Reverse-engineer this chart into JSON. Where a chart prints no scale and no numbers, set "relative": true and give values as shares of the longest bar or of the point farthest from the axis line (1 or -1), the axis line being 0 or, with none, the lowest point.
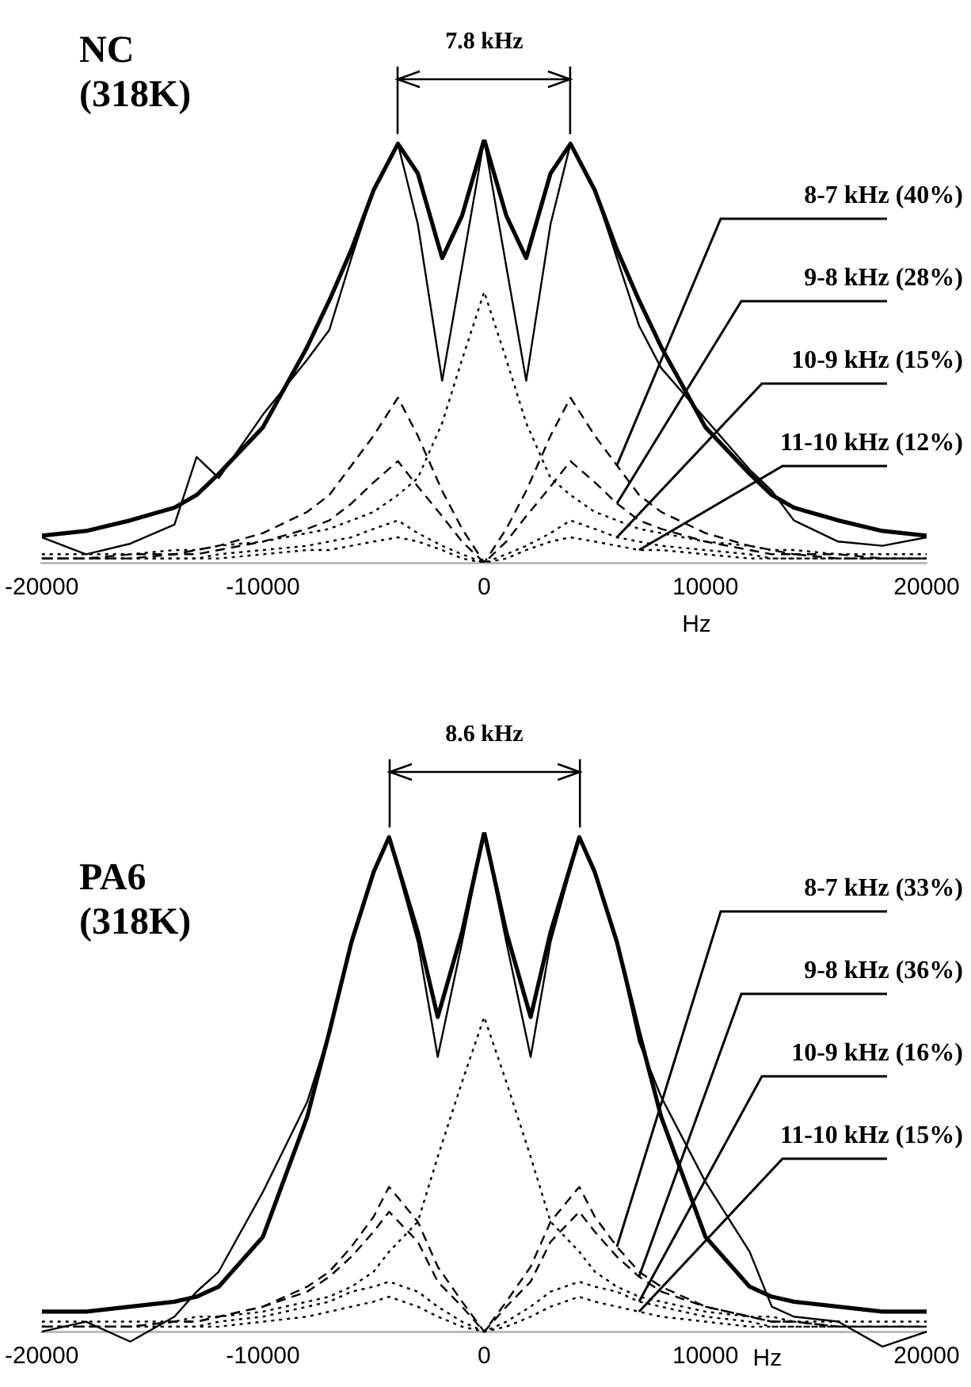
{
  "chart_data": [
    {
      "type": "line",
      "title": "NC (318K)",
      "xlabel": "Hz",
      "relative": true,
      "annotations": [
        "7.8 kHz"
      ],
      "xlim": [
        -20000,
        20000
      ],
      "xticks": [
        -20000,
        -10000,
        0,
        10000,
        20000
      ],
      "grid": false,
      "legend": false,
      "marker": "none",
      "x": [
        -20000,
        -18000,
        -16000,
        -14000,
        -13000,
        -12000,
        -10000,
        -8000,
        -7000,
        -6000,
        -5000,
        -3900,
        -3000,
        -1900,
        -1000,
        0,
        1000,
        1900,
        3000,
        3900,
        5000,
        6000,
        7000,
        8000,
        10000,
        12000,
        13000,
        14000,
        16000,
        18000,
        20000
      ],
      "series": [
        {
          "color": "#000000",
          "line_style": "solid",
          "values": [
            0.064,
            0.075,
            0.1,
            0.13,
            0.16,
            0.21,
            0.32,
            0.51,
            0.62,
            0.74,
            0.88,
            0.99,
            0.92,
            0.72,
            0.82,
            1.0,
            0.82,
            0.72,
            0.92,
            0.99,
            0.88,
            0.74,
            0.62,
            0.51,
            0.32,
            0.21,
            0.16,
            0.13,
            0.1,
            0.075,
            0.064
          ]
        },
        {
          "color": "#000000",
          "line_style": "solid",
          "values": [
            0.06,
            0.02,
            0.045,
            0.09,
            0.25,
            0.2,
            0.35,
            0.48,
            0.55,
            0.72,
            0.88,
            0.99,
            0.8,
            0.43,
            0.7,
            1.0,
            0.7,
            0.43,
            0.8,
            0.99,
            0.88,
            0.72,
            0.56,
            0.46,
            0.34,
            0.22,
            0.17,
            0.1,
            0.05,
            0.04,
            0.06
          ]
        },
        {
          "color": "#000000",
          "line_style": "dotted",
          "values": [
            0.02,
            0.02,
            0.02,
            0.03,
            0.03,
            0.04,
            0.05,
            0.07,
            0.08,
            0.1,
            0.12,
            0.16,
            0.2,
            0.33,
            0.48,
            0.64,
            0.48,
            0.33,
            0.2,
            0.16,
            0.12,
            0.1,
            0.08,
            0.07,
            0.05,
            0.04,
            0.03,
            0.03,
            0.02,
            0.02,
            0.02
          ]
        },
        {
          "name": "8-7 kHz (40%)",
          "color": "#000000",
          "line_style": "dashed",
          "values": [
            0.01,
            0.01,
            0.02,
            0.02,
            0.03,
            0.04,
            0.07,
            0.12,
            0.16,
            0.23,
            0.3,
            0.39,
            0.3,
            0.17,
            0.08,
            0.0,
            0.08,
            0.17,
            0.3,
            0.39,
            0.3,
            0.23,
            0.16,
            0.12,
            0.07,
            0.04,
            0.03,
            0.02,
            0.02,
            0.01,
            0.01
          ]
        },
        {
          "name": "9-8 kHz (28%)",
          "color": "#000000",
          "line_style": "dashed",
          "values": [
            0.01,
            0.01,
            0.01,
            0.02,
            0.02,
            0.03,
            0.05,
            0.08,
            0.1,
            0.14,
            0.19,
            0.24,
            0.18,
            0.11,
            0.05,
            0.0,
            0.05,
            0.11,
            0.18,
            0.24,
            0.19,
            0.14,
            0.1,
            0.08,
            0.05,
            0.03,
            0.02,
            0.02,
            0.01,
            0.01,
            0.01
          ]
        },
        {
          "name": "10-9 kHz (15%)",
          "color": "#000000",
          "line_style": "dotted",
          "values": [
            0.01,
            0.01,
            0.01,
            0.01,
            0.01,
            0.02,
            0.03,
            0.04,
            0.05,
            0.06,
            0.08,
            0.1,
            0.07,
            0.04,
            0.02,
            0.0,
            0.02,
            0.04,
            0.07,
            0.1,
            0.08,
            0.06,
            0.05,
            0.04,
            0.03,
            0.02,
            0.01,
            0.01,
            0.01,
            0.01,
            0.01
          ]
        },
        {
          "name": "11-10 kHz (12%)",
          "color": "#000000",
          "line_style": "dotted",
          "values": [
            0.01,
            0.01,
            0.01,
            0.01,
            0.01,
            0.01,
            0.02,
            0.03,
            0.03,
            0.04,
            0.05,
            0.06,
            0.05,
            0.03,
            0.01,
            0.0,
            0.01,
            0.03,
            0.05,
            0.06,
            0.05,
            0.04,
            0.03,
            0.03,
            0.02,
            0.01,
            0.01,
            0.01,
            0.01,
            0.01,
            0.01
          ]
        }
      ]
    },
    {
      "type": "line",
      "title": "PA6 (318K)",
      "xlabel": "Hz",
      "relative": true,
      "annotations": [
        "8.6 kHz"
      ],
      "xlim": [
        -20000,
        20000
      ],
      "xticks": [
        -20000,
        -10000,
        0,
        10000,
        20000
      ],
      "grid": false,
      "legend": false,
      "marker": "none",
      "x": [
        -20000,
        -18000,
        -16000,
        -14000,
        -13000,
        -12000,
        -10000,
        -8000,
        -7000,
        -6000,
        -5000,
        -4300,
        -3000,
        -2100,
        -1000,
        0,
        1000,
        2100,
        3000,
        4300,
        5000,
        6000,
        7000,
        8000,
        10000,
        12000,
        13000,
        14000,
        16000,
        18000,
        20000
      ],
      "series": [
        {
          "color": "#000000",
          "line_style": "solid",
          "values": [
            0.04,
            0.04,
            0.05,
            0.06,
            0.07,
            0.09,
            0.19,
            0.43,
            0.6,
            0.78,
            0.92,
            0.99,
            0.8,
            0.63,
            0.8,
            1.0,
            0.8,
            0.63,
            0.8,
            0.99,
            0.92,
            0.78,
            0.6,
            0.43,
            0.19,
            0.09,
            0.07,
            0.06,
            0.05,
            0.04,
            0.04
          ]
        },
        {
          "color": "#000000",
          "line_style": "solid",
          "values": [
            0.0,
            0.02,
            -0.02,
            0.03,
            0.08,
            0.12,
            0.28,
            0.46,
            0.6,
            0.78,
            0.92,
            0.99,
            0.78,
            0.55,
            0.78,
            1.0,
            0.78,
            0.55,
            0.78,
            0.99,
            0.92,
            0.78,
            0.58,
            0.47,
            0.3,
            0.16,
            0.05,
            0.03,
            0.02,
            -0.03,
            0.0
          ]
        },
        {
          "color": "#000000",
          "line_style": "dotted",
          "values": [
            0.02,
            0.02,
            0.02,
            0.02,
            0.03,
            0.03,
            0.04,
            0.06,
            0.07,
            0.09,
            0.12,
            0.16,
            0.22,
            0.35,
            0.5,
            0.63,
            0.5,
            0.35,
            0.22,
            0.16,
            0.12,
            0.09,
            0.07,
            0.06,
            0.04,
            0.03,
            0.03,
            0.02,
            0.02,
            0.02,
            0.02
          ]
        },
        {
          "name": "8-7 kHz (33%)",
          "color": "#000000",
          "line_style": "dashed",
          "values": [
            0.01,
            0.01,
            0.01,
            0.02,
            0.02,
            0.03,
            0.05,
            0.09,
            0.12,
            0.17,
            0.23,
            0.29,
            0.22,
            0.13,
            0.06,
            0.0,
            0.06,
            0.13,
            0.22,
            0.29,
            0.23,
            0.17,
            0.12,
            0.09,
            0.05,
            0.03,
            0.02,
            0.02,
            0.01,
            0.01,
            0.01
          ]
        },
        {
          "name": "9-8 kHz (36%)",
          "color": "#000000",
          "line_style": "dashed",
          "values": [
            0.01,
            0.01,
            0.01,
            0.02,
            0.02,
            0.03,
            0.05,
            0.08,
            0.11,
            0.15,
            0.2,
            0.24,
            0.18,
            0.1,
            0.05,
            0.0,
            0.05,
            0.1,
            0.18,
            0.24,
            0.2,
            0.15,
            0.11,
            0.08,
            0.05,
            0.03,
            0.02,
            0.02,
            0.01,
            0.01,
            0.01
          ]
        },
        {
          "name": "10-9 kHz (16%)",
          "color": "#000000",
          "line_style": "dotted",
          "values": [
            0.01,
            0.01,
            0.01,
            0.01,
            0.01,
            0.02,
            0.03,
            0.05,
            0.06,
            0.08,
            0.09,
            0.1,
            0.08,
            0.05,
            0.02,
            0.0,
            0.02,
            0.05,
            0.08,
            0.1,
            0.09,
            0.08,
            0.06,
            0.05,
            0.03,
            0.02,
            0.01,
            0.01,
            0.01,
            0.01,
            0.01
          ]
        },
        {
          "name": "11-10 kHz (15%)",
          "color": "#000000",
          "line_style": "dotted",
          "values": [
            0.01,
            0.01,
            0.01,
            0.01,
            0.01,
            0.01,
            0.02,
            0.03,
            0.04,
            0.05,
            0.06,
            0.07,
            0.05,
            0.03,
            0.01,
            0.0,
            0.01,
            0.03,
            0.05,
            0.07,
            0.06,
            0.05,
            0.04,
            0.03,
            0.02,
            0.01,
            0.01,
            0.01,
            0.01,
            0.01,
            0.01
          ]
        }
      ]
    }
  ]
}
